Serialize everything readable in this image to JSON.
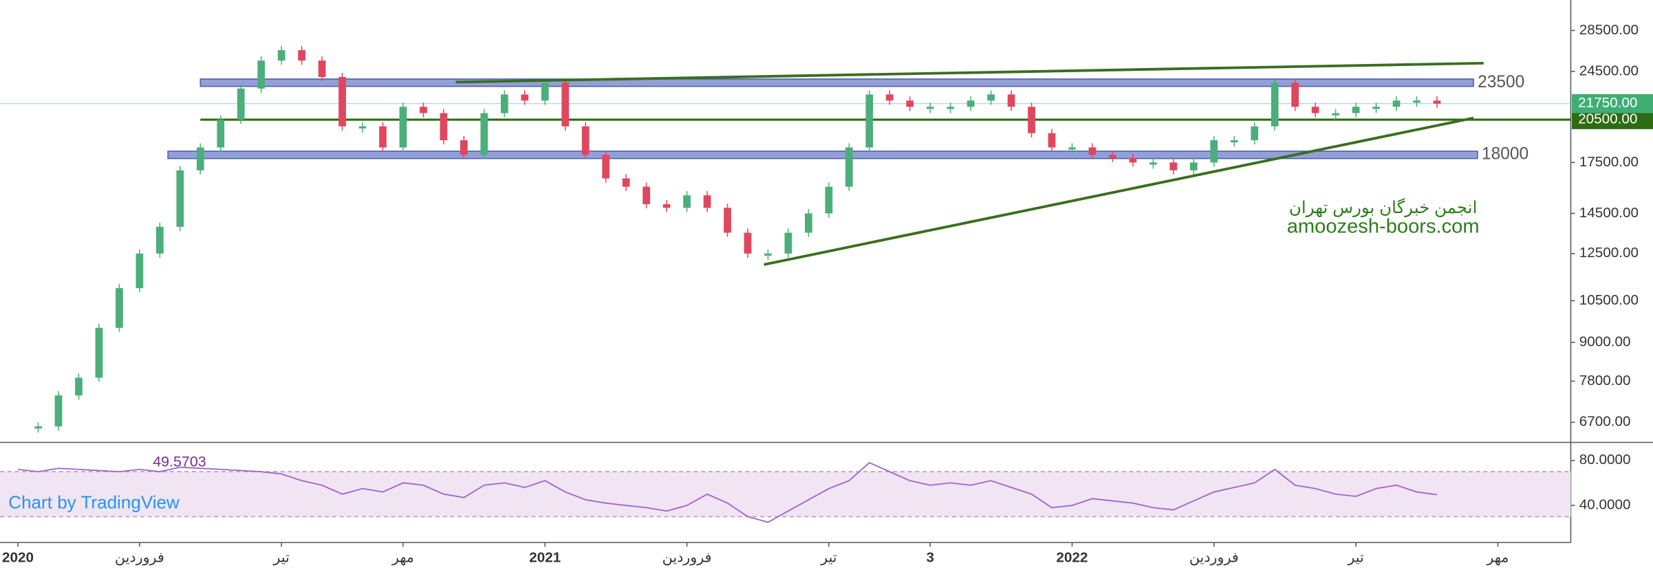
{
  "chart_data": [
    {
      "type": "candlestick",
      "categories": [
        "2020",
        null,
        null,
        null,
        null,
        null,
        "فروردین",
        null,
        null,
        null,
        null,
        null,
        null,
        "تیر",
        null,
        null,
        null,
        null,
        null,
        "مهر",
        null,
        null,
        null,
        null,
        null,
        null,
        "2021",
        null,
        null,
        null,
        null,
        null,
        null,
        "فروردین",
        null,
        null,
        null,
        null,
        null,
        null,
        "تیر",
        null,
        null,
        null,
        null,
        "3",
        null,
        null,
        null,
        null,
        null,
        null,
        "2022",
        null,
        null,
        null,
        null,
        null,
        null,
        "فروردین",
        null,
        null,
        null,
        null,
        null,
        null,
        "تیر",
        null,
        null,
        null,
        null,
        null,
        null,
        "مهر"
      ],
      "values": [
        null,
        6600,
        7400,
        7900,
        9500,
        11000,
        12500,
        13800,
        17000,
        18500,
        20500,
        23000,
        25500,
        26500,
        25500,
        24000,
        20000,
        20000,
        18500,
        21500,
        21000,
        19000,
        18000,
        21000,
        22500,
        22000,
        23500,
        20000,
        18000,
        16500,
        16000,
        15000,
        14800,
        15500,
        14800,
        13500,
        12500,
        12500,
        13500,
        14500,
        16000,
        18500,
        22500,
        22000,
        21500,
        21500,
        21500,
        22000,
        22500,
        21500,
        19500,
        18500,
        18500,
        18000,
        17800,
        17500,
        17500,
        17000,
        17500,
        19000,
        19000,
        20000,
        23500,
        21500,
        21000,
        21000,
        21500,
        21500,
        22000,
        22000,
        21750,
        null,
        null,
        null
      ],
      "color_up": "#4cae7a",
      "color_down": "#e0475e",
      "log_scale": true,
      "ylim": [
        6220,
        31900
      ],
      "yticks": [
        {
          "value": 28500,
          "label": "28500.00"
        },
        {
          "value": 24500,
          "label": "24500.00"
        },
        {
          "value": 17500,
          "label": "17500.00"
        },
        {
          "value": 14500,
          "label": "14500.00"
        },
        {
          "value": 12500,
          "label": "12500.00"
        },
        {
          "value": 10500,
          "label": "10500.00"
        },
        {
          "value": 9000,
          "label": "9000.00"
        },
        {
          "value": 7800,
          "label": "7800.00"
        },
        {
          "value": 6700,
          "label": "6700.00"
        }
      ],
      "levels": [
        23500,
        18000
      ],
      "level_color": "#7f8fd0",
      "hline": {
        "value": 20500,
        "label": "20500.00"
      },
      "hline_color": "#2e6b12",
      "last_price": {
        "value": 21750,
        "label": "21750.00"
      },
      "last_price_color": "#3fae75",
      "trendlines": [
        {
          "from": [
            21.6,
            23550
          ],
          "to": [
            72.3,
            25260
          ]
        },
        {
          "from": [
            36.8,
            12000
          ],
          "to": [
            71.8,
            20630
          ]
        }
      ],
      "trendline_color": "#3a6e1e",
      "annotations": [
        "انجمن خبرگان بورس تهران",
        "amoozesh-boors.com"
      ],
      "credit": "Chart by TradingView"
    },
    {
      "type": "line",
      "values": [
        72,
        70,
        73,
        72,
        71,
        70,
        72,
        70,
        74,
        73,
        72,
        71,
        70,
        68,
        62,
        58,
        50,
        55,
        52,
        60,
        58,
        50,
        47,
        58,
        60,
        56,
        62,
        52,
        45,
        42,
        40,
        38,
        35,
        40,
        50,
        42,
        30,
        25,
        35,
        45,
        55,
        62,
        78,
        70,
        62,
        58,
        60,
        58,
        62,
        56,
        50,
        38,
        40,
        46,
        44,
        42,
        38,
        36,
        44,
        52,
        56,
        60,
        72,
        58,
        55,
        50,
        48,
        55,
        58,
        52,
        49.5703,
        null,
        null,
        null
      ],
      "color": "#a064c8",
      "ylim": [
        7,
        96
      ],
      "yticks": [
        {
          "value": 80,
          "label": "80.0000"
        },
        {
          "value": 40,
          "label": "40.0000"
        }
      ],
      "bands": [
        30,
        70
      ],
      "band_color": "#f1e4f3"
    }
  ]
}
